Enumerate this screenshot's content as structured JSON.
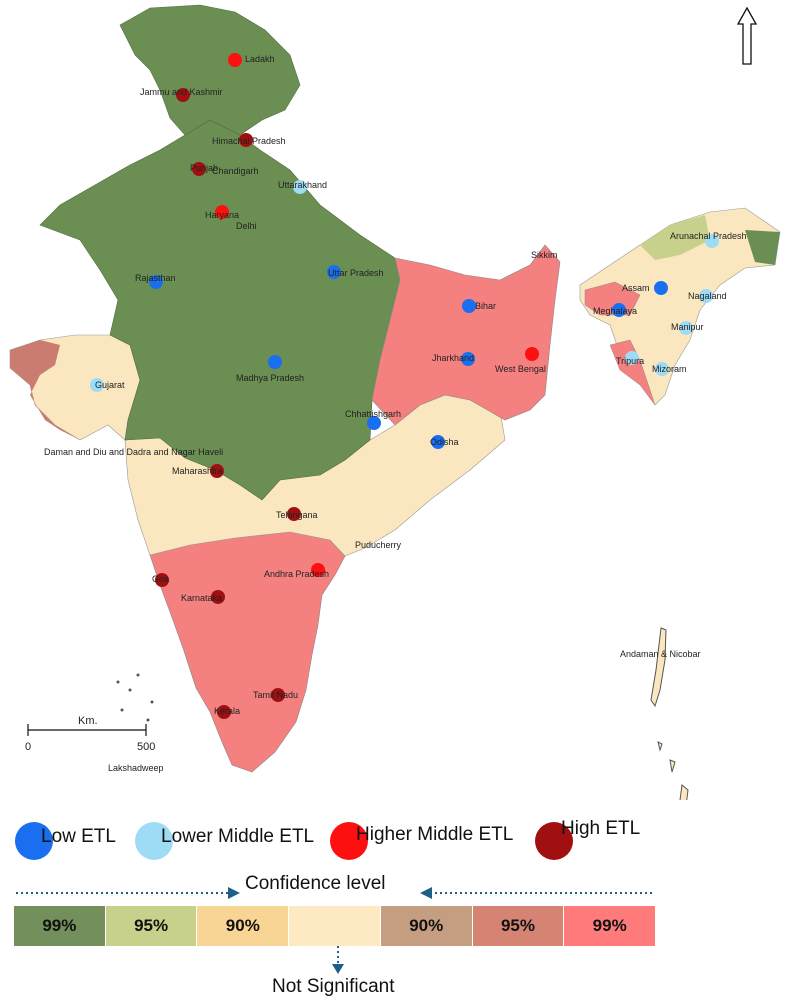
{
  "map": {
    "states": [
      {
        "name": "Ladakh",
        "etl": "higher-middle"
      },
      {
        "name": "Jammu and Kashmir",
        "etl": "high"
      },
      {
        "name": "Himachal Pradesh",
        "etl": "high"
      },
      {
        "name": "Punjab",
        "etl": "high"
      },
      {
        "name": "Chandigarh",
        "etl": ""
      },
      {
        "name": "Uttarakhand",
        "etl": "lower-middle"
      },
      {
        "name": "Haryana",
        "etl": "higher-middle"
      },
      {
        "name": "Delhi",
        "etl": ""
      },
      {
        "name": "Rajasthan",
        "etl": "low"
      },
      {
        "name": "Uttar Pradesh",
        "etl": "low"
      },
      {
        "name": "Bihar",
        "etl": "low"
      },
      {
        "name": "Sikkim",
        "etl": ""
      },
      {
        "name": "Assam",
        "etl": "low"
      },
      {
        "name": "Arunachal Pradesh",
        "etl": "lower-middle"
      },
      {
        "name": "Nagaland",
        "etl": "lower-middle"
      },
      {
        "name": "Meghalaya",
        "etl": "low"
      },
      {
        "name": "Manipur",
        "etl": "lower-middle"
      },
      {
        "name": "Tripura",
        "etl": "lower-middle"
      },
      {
        "name": "Mizoram",
        "etl": "lower-middle"
      },
      {
        "name": "Gujarat",
        "etl": "lower-middle"
      },
      {
        "name": "Madhya Pradesh",
        "etl": "low"
      },
      {
        "name": "Jharkhand",
        "etl": "low"
      },
      {
        "name": "West Bengal",
        "etl": "higher-middle"
      },
      {
        "name": "Chhattishgarh",
        "etl": "low"
      },
      {
        "name": "Odisha",
        "etl": "low"
      },
      {
        "name": "Daman and Diu and Dadra and Nagar Haveli",
        "etl": ""
      },
      {
        "name": "Maharashtra",
        "etl": "high"
      },
      {
        "name": "Telangana",
        "etl": "high"
      },
      {
        "name": "Puducherry",
        "etl": ""
      },
      {
        "name": "Goa",
        "etl": "high"
      },
      {
        "name": "Andhra Pradesh",
        "etl": "higher-middle"
      },
      {
        "name": "Karnataka",
        "etl": "high"
      },
      {
        "name": "Tamil Nadu",
        "etl": "high"
      },
      {
        "name": "Kerala",
        "etl": "high"
      },
      {
        "name": "Andaman & Nicobar",
        "etl": ""
      },
      {
        "name": "Lakshadweep",
        "etl": ""
      }
    ],
    "scale": {
      "unit": "Km.",
      "start": "0",
      "end": "500"
    },
    "north_arrow": "north-arrow-icon"
  },
  "legend": {
    "etl_classes": [
      {
        "key": "low",
        "label": "Low ETL",
        "color": "#1a6ff0"
      },
      {
        "key": "lower-middle",
        "label": "Lower Middle ETL",
        "color": "#9edcf5"
      },
      {
        "key": "higher-middle",
        "label": "Higher Middle ETL",
        "color": "#ff1010"
      },
      {
        "key": "high",
        "label": "High ETL",
        "color": "#a01010"
      }
    ],
    "confidence_title": "Confidence level",
    "confidence_cells": [
      {
        "label": "99%",
        "color": "#728f5c"
      },
      {
        "label": "95%",
        "color": "#c8d18c"
      },
      {
        "label": "90%",
        "color": "#f9d595"
      },
      {
        "label": "",
        "color": "#fde9c2"
      },
      {
        "label": "90%",
        "color": "#c59d80"
      },
      {
        "label": "95%",
        "color": "#d58474"
      },
      {
        "label": "99%",
        "color": "#ff7b7b"
      }
    ],
    "not_significant": "Not Significant"
  }
}
